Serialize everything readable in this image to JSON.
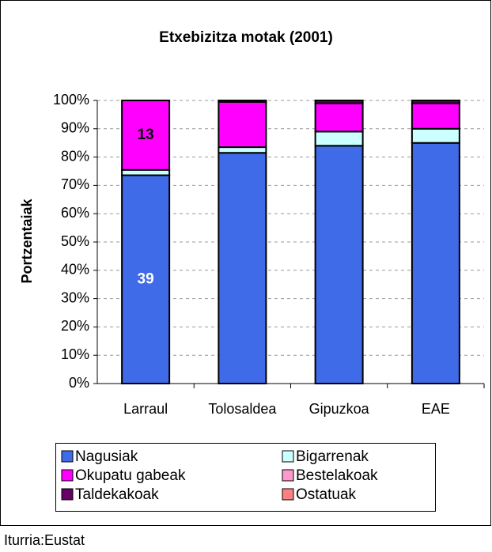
{
  "chart_data": {
    "type": "bar",
    "stacking": "percent",
    "title": "Etxebizitza motak (2001)",
    "y_label": "Portzentaiak",
    "source": "Iturria:Eustat",
    "categories": [
      "Larraul",
      "Tolosaldea",
      "Gipuzkoa",
      "EAE"
    ],
    "series": [
      {
        "name": "Nagusiak",
        "color": "#3f6be8",
        "values": [
          39,
          81.5,
          84,
          85
        ],
        "value_labels": [
          "39",
          null,
          null,
          null
        ]
      },
      {
        "name": "Bigarrenak",
        "color": "#ccffff",
        "values": [
          1,
          2,
          5,
          5
        ]
      },
      {
        "name": "Okupatu gabeak",
        "color": "#ff00ff",
        "values": [
          13,
          16,
          10,
          9
        ],
        "value_labels": [
          "13",
          null,
          null,
          null
        ]
      },
      {
        "name": "Bestelakoak",
        "color": "#ff99cc",
        "values": [
          0,
          0,
          0,
          0
        ]
      },
      {
        "name": "Taldekakoak",
        "color": "#660066",
        "values": [
          0,
          0.5,
          1,
          1
        ]
      },
      {
        "name": "Ostatuak",
        "color": "#ff8080",
        "values": [
          0,
          0,
          0,
          0
        ]
      }
    ],
    "ylim": [
      0,
      100
    ],
    "yticks": [
      {
        "value": 0,
        "label": "0%"
      },
      {
        "value": 10,
        "label": "10%"
      },
      {
        "value": 20,
        "label": "20%"
      },
      {
        "value": 30,
        "label": "30%"
      },
      {
        "value": 40,
        "label": "40%"
      },
      {
        "value": 50,
        "label": "50%"
      },
      {
        "value": 60,
        "label": "60%"
      },
      {
        "value": 70,
        "label": "70%"
      },
      {
        "value": 80,
        "label": "80%"
      },
      {
        "value": 90,
        "label": "90%"
      },
      {
        "value": 100,
        "label": "100%"
      }
    ],
    "grid": true
  }
}
